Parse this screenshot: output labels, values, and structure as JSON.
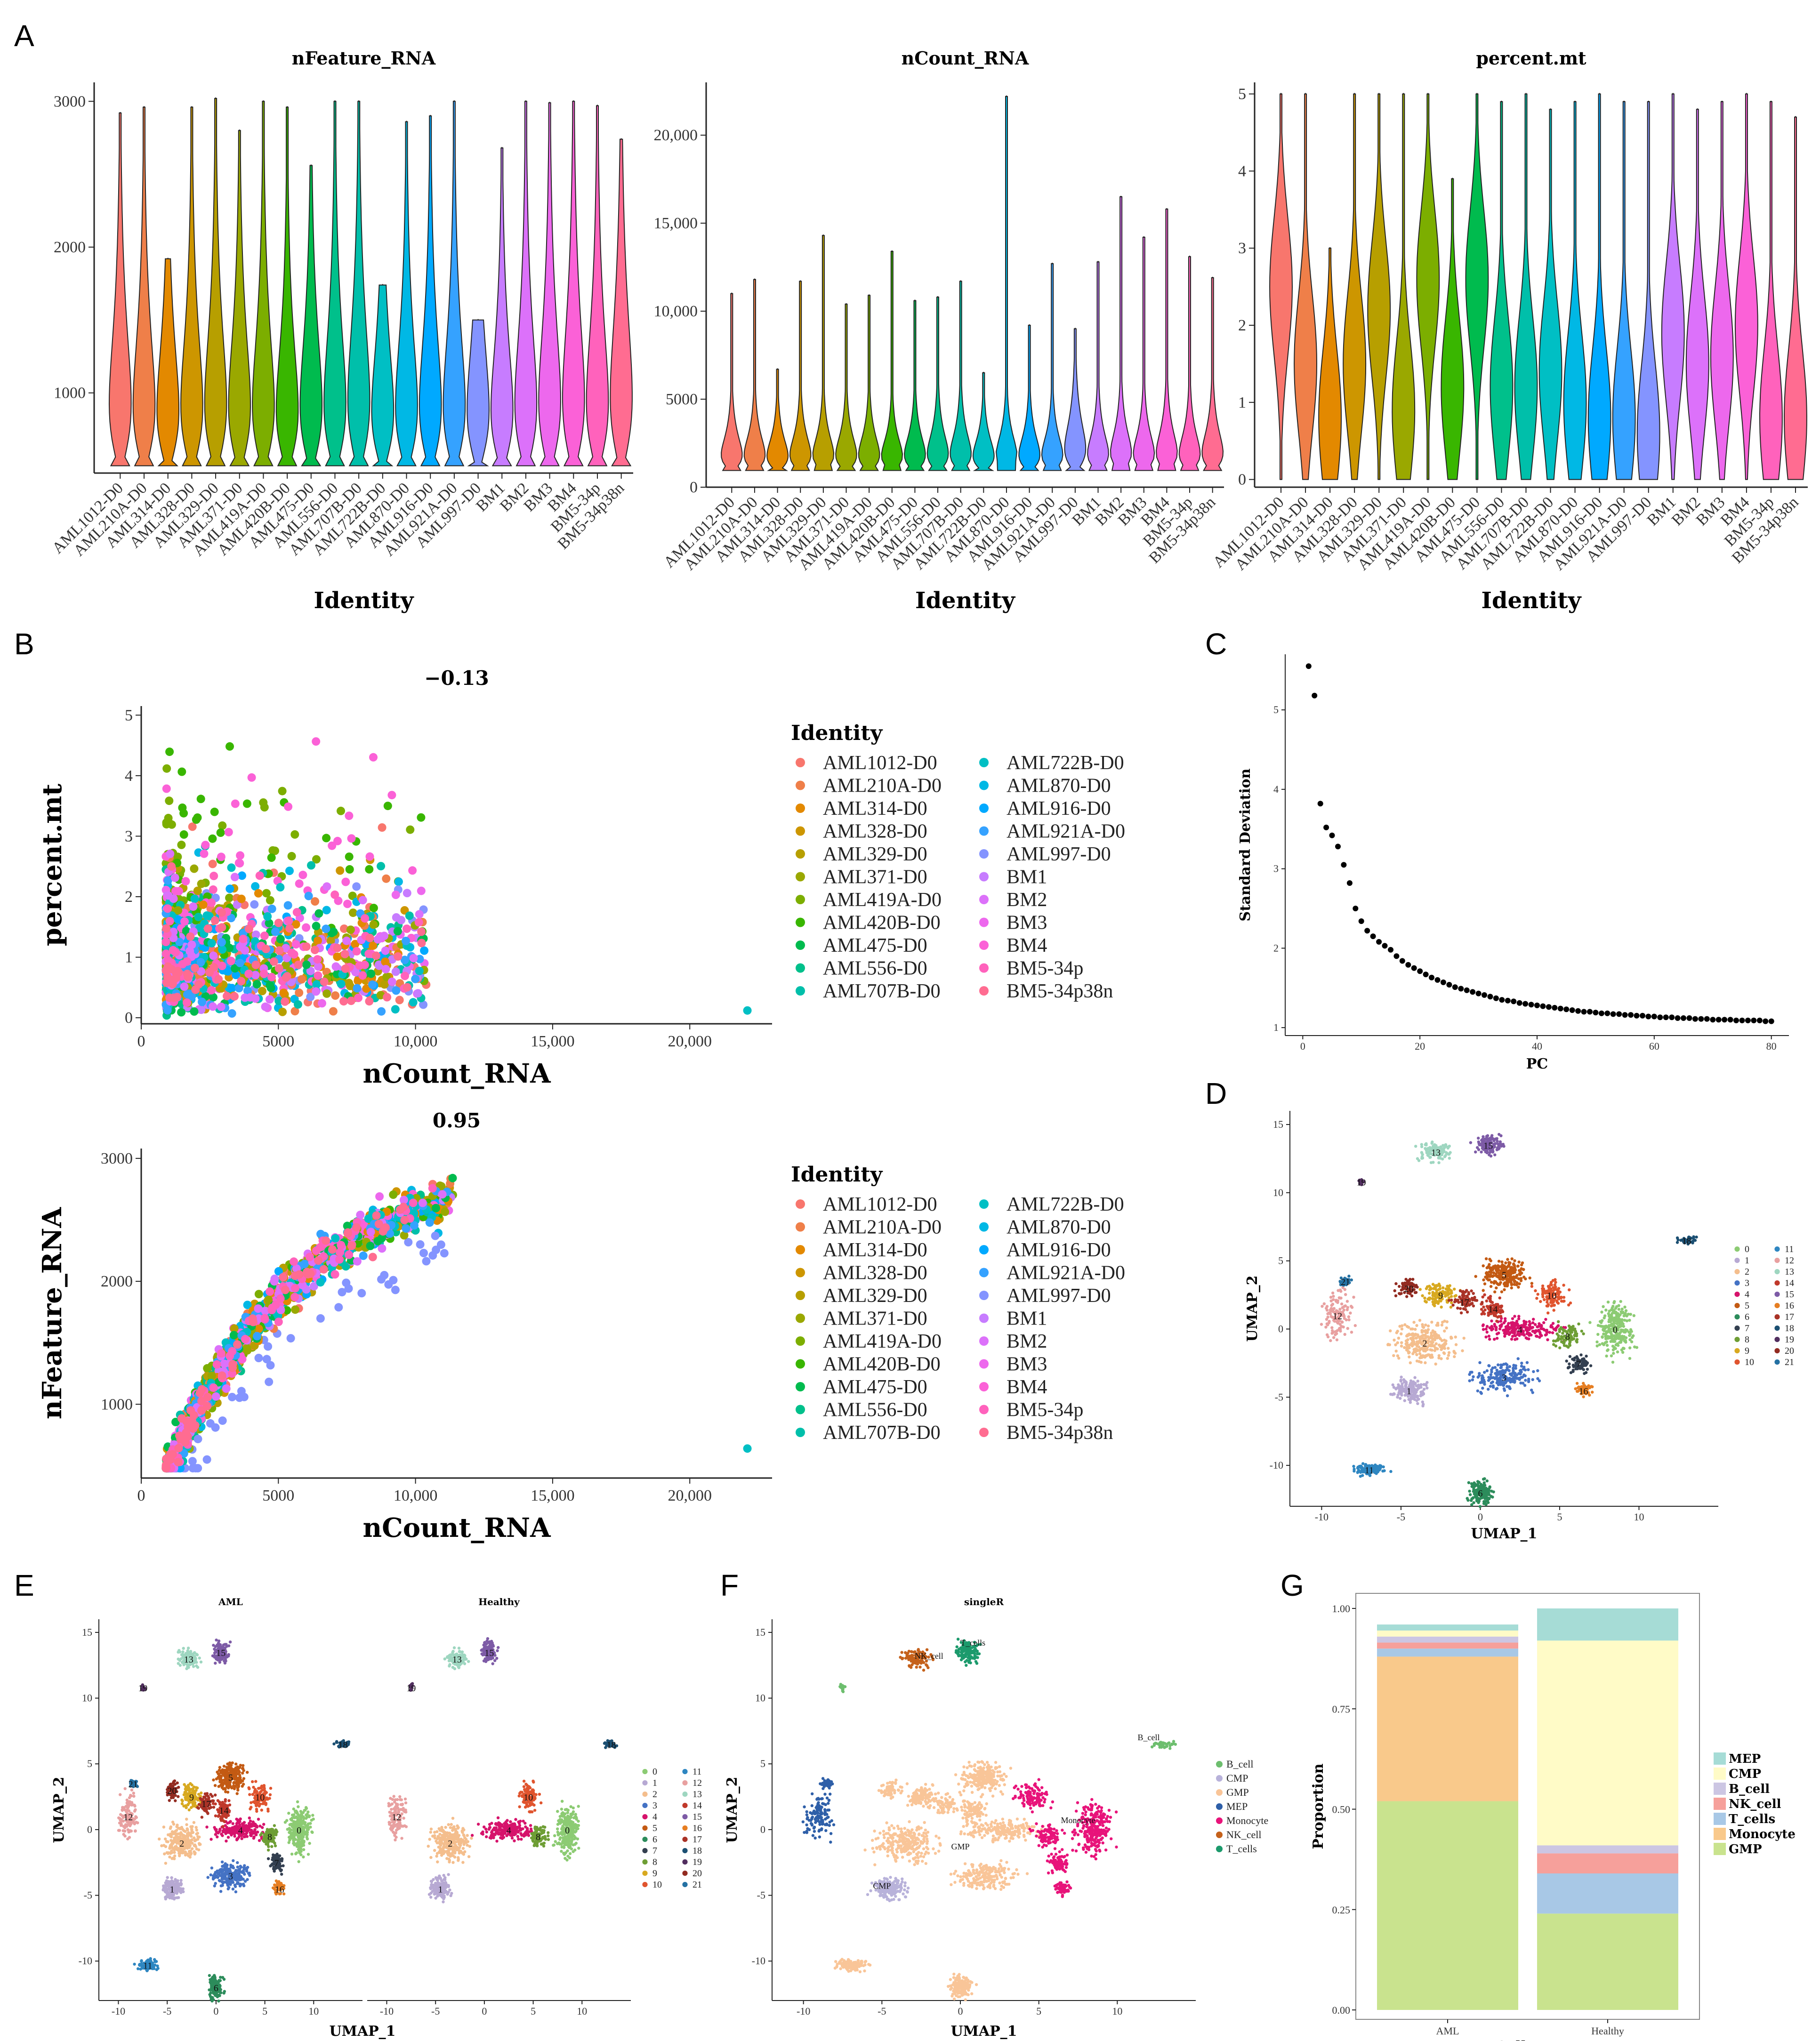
{
  "panels": {
    "A": "A",
    "B": "B",
    "C": "C",
    "D": "D",
    "E": "E",
    "F": "F",
    "G": "G"
  },
  "identities": [
    "AML1012-D0",
    "AML210A-D0",
    "AML314-D0",
    "AML328-D0",
    "AML329-D0",
    "AML371-D0",
    "AML419A-D0",
    "AML420B-D0",
    "AML475-D0",
    "AML556-D0",
    "AML707B-D0",
    "AML722B-D0",
    "AML870-D0",
    "AML916-D0",
    "AML921A-D0",
    "AML997-D0",
    "BM1",
    "BM2",
    "BM3",
    "BM4",
    "BM5-34p",
    "BM5-34p38n"
  ],
  "identity_colors": [
    "#F8766D",
    "#EF7F49",
    "#E38900",
    "#CD9600",
    "#B79F00",
    "#9AA800",
    "#7CAE00",
    "#39B600",
    "#00BB4E",
    "#00C08B",
    "#00BFAA",
    "#00BFC4",
    "#00B8E5",
    "#00A9FF",
    "#35A2FF",
    "#8494FF",
    "#C77CFF",
    "#DC71FA",
    "#ED68ED",
    "#FB61D7",
    "#FF62BC",
    "#FF6C91"
  ],
  "cluster_labels": [
    "0",
    "1",
    "2",
    "3",
    "4",
    "5",
    "6",
    "7",
    "8",
    "9",
    "10",
    "11",
    "12",
    "13",
    "14",
    "15",
    "16",
    "17",
    "18",
    "19",
    "20",
    "21"
  ],
  "cluster_colors": [
    "#8CCB73",
    "#B7A9D3",
    "#F4BE8D",
    "#4472C4",
    "#D6136B",
    "#C35A13",
    "#2C8C5B",
    "#333F50",
    "#6E9E35",
    "#D8A920",
    "#E0542E",
    "#2E86C1",
    "#E8A0A0",
    "#9ED6C0",
    "#C0392B",
    "#7D5BA6",
    "#E67E22",
    "#A93226",
    "#1B4F72",
    "#512E5F",
    "#922B21",
    "#2471A3"
  ],
  "chart_data": [
    {
      "id": "A1",
      "type": "violin",
      "title": "nFeature_RNA",
      "xlabel": "Identity",
      "ylabel": "",
      "ylim": [
        450,
        3130
      ],
      "yticks": [
        1000,
        2000,
        3000
      ],
      "y_tick_labels": [
        "1000",
        "2000",
        "3000"
      ],
      "max": [
        2920,
        2960,
        1920,
        2960,
        3020,
        2800,
        3000,
        2960,
        2560,
        3000,
        3000,
        1740,
        2860,
        2900,
        3000,
        1500,
        2680,
        3000,
        2990,
        3000,
        2970,
        2740
      ],
      "median": [
        720,
        700,
        650,
        700,
        720,
        700,
        700,
        650,
        700,
        720,
        760,
        640,
        690,
        700,
        700,
        650,
        650,
        720,
        750,
        780,
        740,
        800
      ]
    },
    {
      "id": "A2",
      "type": "violin",
      "title": "nCount_RNA",
      "xlabel": "Identity",
      "ylabel": "",
      "ylim": [
        0,
        23000
      ],
      "yticks": [
        0,
        5000,
        10000,
        15000,
        20000
      ],
      "y_tick_labels": [
        "0",
        "5000",
        "10,000",
        "15,000",
        "20,000"
      ],
      "max": [
        11000,
        11800,
        6700,
        11700,
        14300,
        10400,
        10900,
        13400,
        10600,
        10800,
        11700,
        6500,
        22200,
        9200,
        12700,
        9000,
        12800,
        16500,
        14200,
        15800,
        13100,
        11900
      ],
      "median": [
        1500,
        1500,
        1400,
        1500,
        1500,
        1500,
        1500,
        1400,
        1500,
        1600,
        1600,
        1400,
        1500,
        1500,
        1500,
        2100,
        1600,
        1700,
        1600,
        1700,
        1600,
        1700
      ]
    },
    {
      "id": "A3",
      "type": "violin",
      "title": "percent.mt",
      "xlabel": "Identity",
      "ylabel": "",
      "ylim": [
        -0.1,
        5.15
      ],
      "yticks": [
        0,
        1,
        2,
        3,
        4,
        5
      ],
      "y_tick_labels": [
        "0",
        "1",
        "2",
        "3",
        "4",
        "5"
      ],
      "max": [
        5,
        5,
        3,
        5,
        5,
        5,
        5,
        3.9,
        5,
        4.9,
        5,
        4.8,
        4.9,
        5,
        4.9,
        4.9,
        5,
        4.8,
        4.9,
        5,
        4.9,
        4.7
      ],
      "median": [
        2.5,
        1.5,
        0.8,
        1.5,
        2.2,
        0.9,
        2.6,
        1.2,
        2.6,
        1.2,
        1.2,
        1.4,
        1.0,
        0.8,
        0.8,
        0.6,
        1.9,
        1.5,
        1.6,
        2.0,
        0.8,
        0.8
      ]
    },
    {
      "id": "B1",
      "type": "scatter",
      "title": "−0.13",
      "xlabel": "nCount_RNA",
      "ylabel": "percent.mt",
      "xlim": [
        0,
        23000
      ],
      "ylim": [
        -0.1,
        5.15
      ],
      "xticks": [
        0,
        5000,
        10000,
        15000,
        20000
      ],
      "x_tick_labels": [
        "0",
        "5000",
        "10,000",
        "15,000",
        "20,000"
      ],
      "yticks": [
        0,
        1,
        2,
        3,
        4,
        5
      ],
      "y_tick_labels": [
        "0",
        "1",
        "2",
        "3",
        "4",
        "5"
      ],
      "correlation": -0.13,
      "legend_title": "Identity",
      "legend_position": "right"
    },
    {
      "id": "B2",
      "type": "scatter",
      "title": "0.95",
      "xlabel": "nCount_RNA",
      "ylabel": "nFeature_RNA",
      "xlim": [
        0,
        23000
      ],
      "ylim": [
        400,
        3080
      ],
      "xticks": [
        0,
        5000,
        10000,
        15000,
        20000
      ],
      "x_tick_labels": [
        "0",
        "5000",
        "10,000",
        "15,000",
        "20,000"
      ],
      "yticks": [
        1000,
        2000,
        3000
      ],
      "y_tick_labels": [
        "1000",
        "2000",
        "3000"
      ],
      "correlation": 0.95,
      "legend_title": "Identity",
      "legend_position": "right"
    },
    {
      "id": "C",
      "type": "scatter",
      "title": "",
      "xlabel": "PC",
      "ylabel": "Standard Deviation",
      "xlim": [
        -3,
        83
      ],
      "ylim": [
        0.9,
        5.7
      ],
      "xticks": [
        0,
        20,
        40,
        60,
        80
      ],
      "x_tick_labels": [
        "0",
        "20",
        "40",
        "60",
        "80"
      ],
      "yticks": [
        1,
        2,
        3,
        4,
        5
      ],
      "y_tick_labels": [
        "1",
        "2",
        "3",
        "4",
        "5"
      ],
      "x": [
        1,
        2,
        3,
        4,
        5,
        6,
        7,
        8,
        9,
        10,
        11,
        12,
        13,
        14,
        15,
        16,
        17,
        18,
        19,
        20,
        21,
        22,
        23,
        24,
        25,
        26,
        27,
        28,
        29,
        30,
        31,
        32,
        33,
        34,
        35,
        36,
        37,
        38,
        39,
        40,
        41,
        42,
        43,
        44,
        45,
        46,
        47,
        48,
        49,
        50,
        51,
        52,
        53,
        54,
        55,
        56,
        57,
        58,
        59,
        60,
        61,
        62,
        63,
        64,
        65,
        66,
        67,
        68,
        69,
        70,
        71,
        72,
        73,
        74,
        75,
        76,
        77,
        78,
        79,
        80
      ],
      "y": [
        5.55,
        5.18,
        3.82,
        3.52,
        3.42,
        3.28,
        3.05,
        2.82,
        2.5,
        2.34,
        2.22,
        2.15,
        2.08,
        2.03,
        1.98,
        1.9,
        1.84,
        1.79,
        1.75,
        1.71,
        1.67,
        1.63,
        1.6,
        1.57,
        1.54,
        1.51,
        1.49,
        1.47,
        1.45,
        1.43,
        1.41,
        1.39,
        1.37,
        1.35,
        1.34,
        1.33,
        1.31,
        1.3,
        1.29,
        1.28,
        1.27,
        1.26,
        1.25,
        1.24,
        1.23,
        1.22,
        1.21,
        1.2,
        1.2,
        1.19,
        1.18,
        1.18,
        1.17,
        1.17,
        1.16,
        1.16,
        1.15,
        1.15,
        1.14,
        1.14,
        1.13,
        1.13,
        1.13,
        1.12,
        1.12,
        1.12,
        1.11,
        1.11,
        1.11,
        1.1,
        1.1,
        1.1,
        1.1,
        1.09,
        1.09,
        1.09,
        1.09,
        1.09,
        1.08,
        1.08
      ]
    },
    {
      "id": "D",
      "type": "scatter",
      "title": "",
      "xlabel": "UMAP_1",
      "ylabel": "UMAP_2",
      "xlim": [
        -12,
        15
      ],
      "ylim": [
        -13,
        16
      ],
      "xticks": [
        -10,
        -5,
        0,
        5,
        10
      ],
      "x_tick_labels": [
        "-10",
        "-5",
        "0",
        "5",
        "10"
      ],
      "yticks": [
        -10,
        -5,
        0,
        5,
        10,
        15
      ],
      "y_tick_labels": [
        "-10",
        "-5",
        "0",
        "5",
        "10",
        "15"
      ],
      "legend_position": "right"
    },
    {
      "id": "E",
      "type": "scatter",
      "facets": [
        "AML",
        "Healthy"
      ],
      "xlabel": "UMAP_1",
      "ylabel": "UMAP_2",
      "xlim": [
        -12,
        15
      ],
      "ylim": [
        -13,
        16
      ],
      "xticks": [
        -10,
        -5,
        0,
        5,
        10
      ],
      "x_tick_labels": [
        "-10",
        "-5",
        "0",
        "5",
        "10"
      ],
      "yticks": [
        -10,
        -5,
        0,
        5,
        10,
        15
      ],
      "y_tick_labels": [
        "-10",
        "-5",
        "0",
        "5",
        "10",
        "15"
      ],
      "legend_position": "right"
    },
    {
      "id": "F",
      "type": "scatter",
      "title": "singleR",
      "xlabel": "UMAP_1",
      "ylabel": "UMAP_2",
      "xlim": [
        -12,
        15
      ],
      "ylim": [
        -13,
        16
      ],
      "xticks": [
        -10,
        -5,
        0,
        5,
        10
      ],
      "x_tick_labels": [
        "-10",
        "-5",
        "0",
        "5",
        "10"
      ],
      "yticks": [
        -10,
        -5,
        0,
        5,
        10,
        15
      ],
      "y_tick_labels": [
        "-10",
        "-5",
        "0",
        "5",
        "10",
        "15"
      ],
      "legend": [
        "B_cell",
        "CMP",
        "GMP",
        "MEP",
        "Monocyte",
        "NK_cell",
        "T_cells"
      ],
      "legend_colors": [
        "#6DBE6E",
        "#B8B2DA",
        "#F9C598",
        "#2E5FA8",
        "#E8137A",
        "#C5611B",
        "#1C9A6C"
      ],
      "annotations": [
        "NK_cell",
        "T_cells",
        "B_cell",
        "GMP",
        "Monocyte",
        "CMP"
      ],
      "legend_position": "right"
    },
    {
      "id": "G",
      "type": "bar",
      "stacked": true,
      "title": "",
      "xlabel": "Celltype",
      "ylabel": "Proportion",
      "categories": [
        "AML",
        "Healthy"
      ],
      "ylim": [
        0,
        1.02
      ],
      "yticks": [
        0,
        0.25,
        0.5,
        0.75,
        1.0
      ],
      "y_tick_labels": [
        "0.00",
        "0.25",
        "0.50",
        "0.75",
        "1.00"
      ],
      "series": [
        {
          "name": "GMP",
          "color": "#C9E38E",
          "values": [
            0.52,
            0.24
          ]
        },
        {
          "name": "Monocyte",
          "color": "#F9C98B",
          "values": [
            0.36,
            0.0
          ]
        },
        {
          "name": "T_cells",
          "color": "#A8C8E6",
          "values": [
            0.02,
            0.1
          ]
        },
        {
          "name": "NK_cell",
          "color": "#F6A09B",
          "values": [
            0.015,
            0.05
          ]
        },
        {
          "name": "B_cell",
          "color": "#CCC6E3",
          "values": [
            0.015,
            0.02
          ]
        },
        {
          "name": "CMP",
          "color": "#FFFBC7",
          "values": [
            0.015,
            0.51
          ]
        },
        {
          "name": "MEP",
          "color": "#A6DCD6",
          "values": [
            0.015,
            0.08
          ]
        }
      ],
      "legend": [
        "MEP",
        "CMP",
        "B_cell",
        "NK_cell",
        "T_cells",
        "Monocyte",
        "GMP"
      ],
      "legend_position": "right"
    }
  ]
}
